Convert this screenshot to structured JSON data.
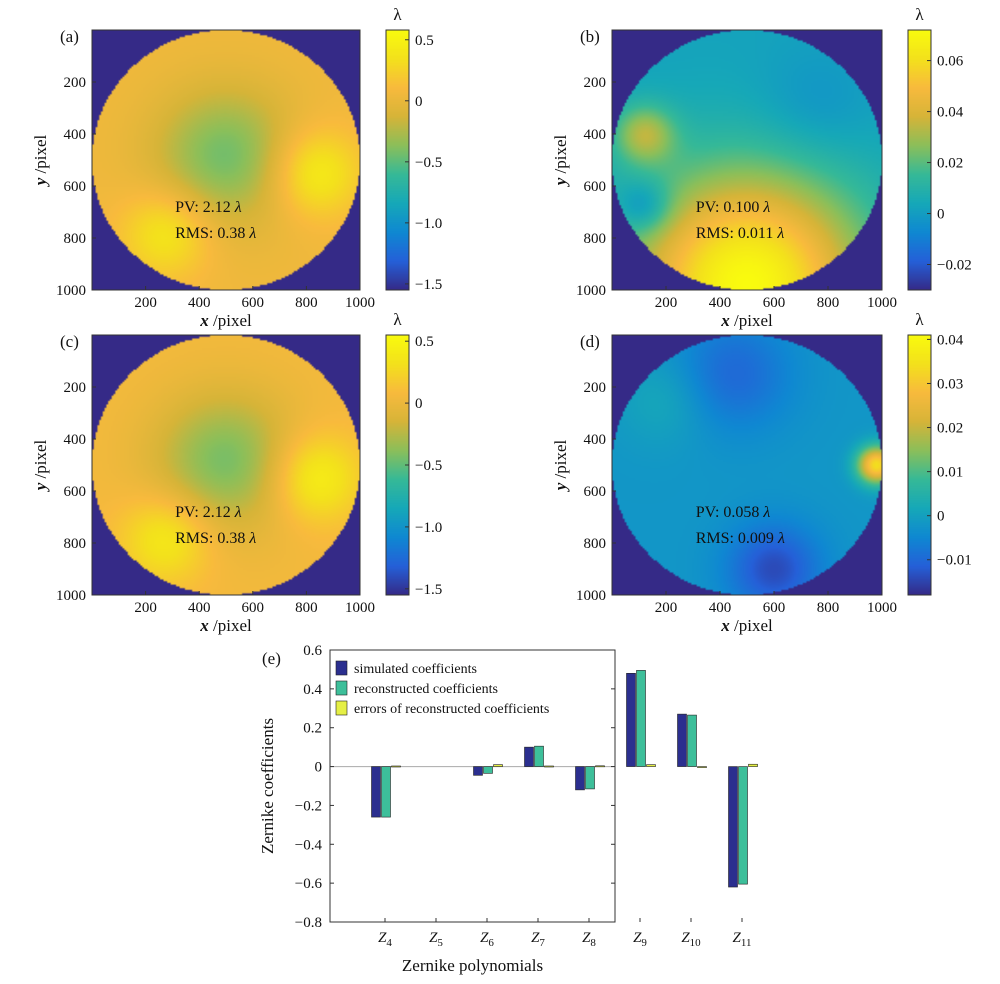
{
  "colors": {
    "colormap": [
      "#352a87",
      "#2560d8",
      "#0f88d2",
      "#16a8b8",
      "#36b997",
      "#8bbf5a",
      "#d6b438",
      "#f8ba3d",
      "#f3e11c",
      "#f9fb0e"
    ],
    "simulated": "#2b2f8f",
    "reconstructed": "#3dbf9a",
    "errors": "#e5ef45",
    "background": "#3f3ba4"
  },
  "panels": [
    {
      "label": "(a)",
      "xlabel_var": "x",
      "ylabel_var": "y",
      "axis_unit": " /pixel",
      "xticks": [
        "200",
        "400",
        "600",
        "800",
        "1000"
      ],
      "yticks": [
        "200",
        "400",
        "600",
        "800",
        "1000"
      ],
      "pv": "PV: 2.12",
      "rms": "RMS: 0.38",
      "unit_symbol": "λ",
      "colorbar_label": "λ",
      "colorbar_range": [
        -1.55,
        0.58
      ],
      "colorbar_ticks": [
        "0.5",
        "0",
        "−0.5",
        "−1.0",
        "−1.5"
      ],
      "colorbar_tick_values": [
        0.5,
        0,
        -0.5,
        -1.0,
        -1.5
      ],
      "circle_background": -1.55,
      "surface": [
        [
          0.5,
          0.55,
          0.12,
          0.16,
          0.55
        ],
        [
          0.83,
          0.55,
          0.42,
          0.12,
          0.45
        ],
        [
          0.28,
          0.78,
          0.36,
          0.12,
          0.25
        ]
      ],
      "surface_base": 0.05,
      "surface_center": -0.55,
      "surface_center_size": 0.18
    },
    {
      "label": "(b)",
      "xlabel_var": "x",
      "ylabel_var": "y",
      "axis_unit": " /pixel",
      "xticks": [
        "200",
        "400",
        "600",
        "800",
        "1000"
      ],
      "yticks": [
        "200",
        "400",
        "600",
        "800",
        "1000"
      ],
      "pv": "PV: 0.100",
      "rms": "RMS: 0.011",
      "unit_symbol": "λ",
      "colorbar_label": "λ",
      "colorbar_range": [
        -0.03,
        0.072
      ],
      "colorbar_ticks": [
        "0.06",
        "0.04",
        "0.02",
        "0",
        "−0.02"
      ],
      "colorbar_tick_values": [
        0.06,
        0.04,
        0.02,
        0,
        -0.02
      ],
      "circle_background": -0.03,
      "surface": [
        [
          0.12,
          0.4,
          0.028,
          0.08,
          0.08
        ],
        [
          0.12,
          0.68,
          -0.018,
          0.07,
          0.06
        ],
        [
          0.5,
          0.98,
          0.07,
          0.3,
          0.025
        ],
        [
          0.75,
          0.3,
          -0.006,
          0.15,
          0.1
        ]
      ],
      "surface_base": 0.002,
      "surface_center": 0.002,
      "surface_center_size": 0.2
    },
    {
      "label": "(c)",
      "xlabel_var": "x",
      "ylabel_var": "y",
      "axis_unit": " /pixel",
      "xticks": [
        "200",
        "400",
        "600",
        "800",
        "1000"
      ],
      "yticks": [
        "200",
        "400",
        "600",
        "800",
        "1000"
      ],
      "pv": "PV: 2.12",
      "rms": "RMS: 0.38",
      "unit_symbol": "λ",
      "colorbar_label": "λ",
      "colorbar_range": [
        -1.55,
        0.55
      ],
      "colorbar_ticks": [
        "0.5",
        "0",
        "−0.5",
        "−1.0",
        "−1.5"
      ],
      "colorbar_tick_values": [
        0.5,
        0,
        -0.5,
        -1.0,
        -1.5
      ],
      "circle_background": -1.55,
      "surface": [
        [
          0.5,
          0.55,
          0.12,
          0.16,
          0.55
        ],
        [
          0.83,
          0.55,
          0.42,
          0.12,
          0.45
        ],
        [
          0.28,
          0.78,
          0.36,
          0.12,
          0.25
        ]
      ],
      "surface_base": 0.05,
      "surface_center": -0.55,
      "surface_center_size": 0.18
    },
    {
      "label": "(d)",
      "xlabel_var": "x",
      "ylabel_var": "y",
      "axis_unit": " /pixel",
      "xticks": [
        "200",
        "400",
        "600",
        "800",
        "1000"
      ],
      "yticks": [
        "200",
        "400",
        "600",
        "800",
        "1000"
      ],
      "pv": "PV: 0.058",
      "rms": "RMS: 0.009",
      "unit_symbol": "λ",
      "colorbar_label": "λ",
      "colorbar_range": [
        -0.018,
        0.041
      ],
      "colorbar_ticks": [
        "0.04",
        "0.03",
        "0.02",
        "0.01",
        "0",
        "−0.01"
      ],
      "colorbar_tick_values": [
        0.04,
        0.03,
        0.02,
        0.01,
        0,
        -0.01
      ],
      "circle_background": -0.018,
      "surface": [
        [
          0.98,
          0.5,
          0.036,
          0.05,
          0.14
        ],
        [
          0.6,
          0.9,
          -0.012,
          0.12,
          0.05
        ],
        [
          0.45,
          0.15,
          -0.008,
          0.15,
          0.04
        ],
        [
          0.2,
          0.25,
          0.004,
          0.12,
          0.06
        ]
      ],
      "surface_base": -0.002,
      "surface_center": -0.002,
      "surface_center_size": 0.2
    }
  ],
  "chart_data": {
    "type": "bar",
    "panel_label": "(e)",
    "categories": [
      {
        "base": "Z",
        "sub": "4"
      },
      {
        "base": "Z",
        "sub": "5"
      },
      {
        "base": "Z",
        "sub": "6"
      },
      {
        "base": "Z",
        "sub": "7"
      },
      {
        "base": "Z",
        "sub": "8"
      },
      {
        "base": "Z",
        "sub": "9"
      },
      {
        "base": "Z",
        "sub": "10"
      },
      {
        "base": "Z",
        "sub": "11"
      }
    ],
    "series": [
      {
        "name": "simulated coefficients",
        "values": [
          -0.26,
          0,
          -0.045,
          0.1,
          -0.12,
          0.48,
          0.27,
          -0.62
        ]
      },
      {
        "name": "reconstructed coefficients",
        "values": [
          -0.26,
          0,
          -0.035,
          0.105,
          -0.115,
          0.495,
          0.265,
          -0.605
        ]
      },
      {
        "name": "errors of reconstructed coefficients",
        "values": [
          0.003,
          0,
          0.01,
          0.003,
          0.004,
          0.01,
          -0.005,
          0.012
        ]
      }
    ],
    "xlabel": "Zernike polynomials",
    "ylabel": "Zernike coefficients",
    "ylim": [
      -0.8,
      0.6
    ],
    "yticks": [
      "0.6",
      "0.4",
      "0.2",
      "0",
      "−0.2",
      "−0.4",
      "−0.6",
      "−0.8"
    ],
    "ytick_values": [
      0.6,
      0.4,
      0.2,
      0,
      -0.2,
      -0.4,
      -0.6,
      -0.8
    ],
    "legend_position": "top-left"
  }
}
